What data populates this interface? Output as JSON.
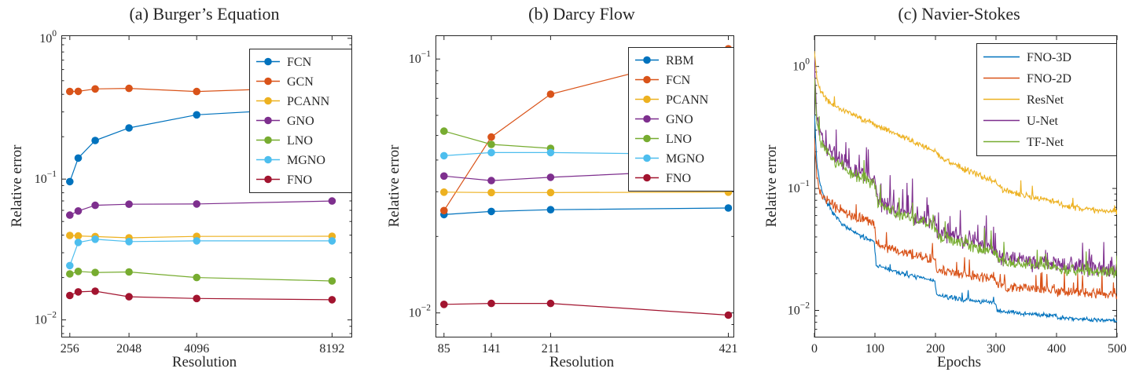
{
  "figure": {
    "background": "#ffffff",
    "axis_color": "#262626",
    "text_color": "#262626"
  },
  "colors": {
    "blue": "#0072BD",
    "orange": "#D95319",
    "yellow": "#EDB120",
    "purple": "#7E2F8E",
    "green": "#77AC30",
    "cyan": "#4DBEEE",
    "darkred": "#A2142F"
  },
  "chart_data": [
    {
      "type": "line",
      "title": "(a) Burger’s Equation",
      "xlabel": "Resolution",
      "ylabel": "Relative error",
      "x_scale": "linear",
      "y_scale": "log",
      "xlim": [
        0,
        8800
      ],
      "ylim": [
        0.0075,
        1.05
      ],
      "x_ticks": [
        256,
        2048,
        4096,
        8192
      ],
      "y_ticks": [
        0.01,
        0.1,
        1
      ],
      "grid": false,
      "markers": true,
      "legend_position": "northeast-inside",
      "x": [
        256,
        512,
        1024,
        2048,
        4096,
        8192
      ],
      "series": [
        {
          "name": "FCN",
          "color": "blue",
          "values": [
            0.096,
            0.141,
            0.188,
            0.231,
            0.286,
            0.324
          ]
        },
        {
          "name": "GCN",
          "color": "orange",
          "values": [
            0.419,
            0.42,
            0.437,
            0.441,
            0.419,
            0.451
          ]
        },
        {
          "name": "PCANN",
          "color": "yellow",
          "values": [
            0.0398,
            0.0395,
            0.0391,
            0.0383,
            0.0392,
            0.0393
          ]
        },
        {
          "name": "GNO",
          "color": "purple",
          "values": [
            0.0555,
            0.0594,
            0.0651,
            0.0663,
            0.0666,
            0.0699
          ]
        },
        {
          "name": "LNO",
          "color": "green",
          "values": [
            0.0212,
            0.0221,
            0.0217,
            0.0219,
            0.02,
            0.0189
          ]
        },
        {
          "name": "MGNO",
          "color": "cyan",
          "values": [
            0.0243,
            0.0355,
            0.0374,
            0.036,
            0.0364,
            0.0364
          ]
        },
        {
          "name": "FNO",
          "color": "darkred",
          "values": [
            0.0149,
            0.0158,
            0.016,
            0.0146,
            0.0142,
            0.0139
          ]
        }
      ]
    },
    {
      "type": "line",
      "title": "(b) Darcy Flow",
      "xlabel": "Resolution",
      "ylabel": "Relative error",
      "x_scale": "linear",
      "y_scale": "log",
      "xlim": [
        75,
        428
      ],
      "ylim": [
        0.008,
        0.124
      ],
      "x_ticks": [
        85,
        141,
        211,
        421
      ],
      "y_ticks": [
        0.01,
        0.1
      ],
      "grid": false,
      "markers": true,
      "legend_position": "northeast-inside",
      "x": [
        85,
        141,
        211,
        421
      ],
      "series": [
        {
          "name": "RBM",
          "color": "blue",
          "values": [
            0.0244,
            0.0251,
            0.0255,
            0.0259
          ]
        },
        {
          "name": "FCN",
          "color": "orange",
          "values": [
            0.0253,
            0.0493,
            0.0727,
            0.1097
          ]
        },
        {
          "name": "PCANN",
          "color": "yellow",
          "values": [
            0.0299,
            0.0298,
            0.0298,
            0.0299
          ]
        },
        {
          "name": "GNO",
          "color": "purple",
          "values": [
            0.0346,
            0.0332,
            0.0342,
            0.0369
          ]
        },
        {
          "name": "LNO",
          "color": "green",
          "values": [
            0.052,
            0.0461,
            0.0445,
            null
          ]
        },
        {
          "name": "MGNO",
          "color": "cyan",
          "values": [
            0.0416,
            0.0428,
            0.0428,
            0.042
          ]
        },
        {
          "name": "FNO",
          "color": "darkred",
          "values": [
            0.0108,
            0.0109,
            0.0109,
            0.0098
          ]
        }
      ]
    },
    {
      "type": "line",
      "title": "(c) Navier-Stokes",
      "xlabel": "Epochs",
      "ylabel": "Relative error",
      "x_scale": "linear",
      "y_scale": "log",
      "xlim": [
        0,
        500
      ],
      "ylim": [
        0.006,
        1.8
      ],
      "x_ticks": [
        0,
        100,
        200,
        300,
        400,
        500
      ],
      "y_ticks": [
        0.01,
        0.1,
        1
      ],
      "grid": false,
      "markers": false,
      "legend_position": "northeast-inside",
      "series": [
        {
          "name": "FNO-3D",
          "color": "blue",
          "seed": 7,
          "noise": 0.022,
          "spike_p": 0.02,
          "spike_a": 0.1,
          "keypoints": [
            [
              0,
              0.42
            ],
            [
              4,
              0.16
            ],
            [
              10,
              0.105
            ],
            [
              20,
              0.075
            ],
            [
              35,
              0.058
            ],
            [
              55,
              0.047
            ],
            [
              75,
              0.041
            ],
            [
              99,
              0.037
            ],
            [
              102,
              0.0235
            ],
            [
              130,
              0.021
            ],
            [
              165,
              0.019
            ],
            [
              199,
              0.0175
            ],
            [
              202,
              0.0133
            ],
            [
              250,
              0.0122
            ],
            [
              299,
              0.0115
            ],
            [
              302,
              0.0099
            ],
            [
              350,
              0.0094
            ],
            [
              399,
              0.0091
            ],
            [
              402,
              0.0087
            ],
            [
              450,
              0.0085
            ],
            [
              500,
              0.0082
            ]
          ]
        },
        {
          "name": "FNO-2D",
          "color": "orange",
          "seed": 13,
          "noise": 0.05,
          "spike_p": 0.05,
          "spike_a": 0.18,
          "keypoints": [
            [
              0,
              0.26
            ],
            [
              4,
              0.125
            ],
            [
              10,
              0.095
            ],
            [
              20,
              0.08
            ],
            [
              35,
              0.07
            ],
            [
              55,
              0.062
            ],
            [
              75,
              0.057
            ],
            [
              99,
              0.053
            ],
            [
              102,
              0.0355
            ],
            [
              130,
              0.0315
            ],
            [
              165,
              0.0285
            ],
            [
              199,
              0.0265
            ],
            [
              202,
              0.0213
            ],
            [
              250,
              0.0194
            ],
            [
              299,
              0.0183
            ],
            [
              302,
              0.0159
            ],
            [
              350,
              0.0151
            ],
            [
              399,
              0.0147
            ],
            [
              402,
              0.0142
            ],
            [
              450,
              0.0139
            ],
            [
              500,
              0.0135
            ]
          ]
        },
        {
          "name": "ResNet",
          "color": "yellow",
          "seed": 21,
          "noise": 0.03,
          "spike_p": 0.03,
          "spike_a": 0.12,
          "keypoints": [
            [
              0,
              1.35
            ],
            [
              4,
              0.8
            ],
            [
              10,
              0.63
            ],
            [
              20,
              0.54
            ],
            [
              35,
              0.47
            ],
            [
              55,
              0.42
            ],
            [
              75,
              0.38
            ],
            [
              100,
              0.335
            ],
            [
              130,
              0.285
            ],
            [
              165,
              0.24
            ],
            [
              200,
              0.2
            ],
            [
              215,
              0.172
            ],
            [
              250,
              0.142
            ],
            [
              299,
              0.113
            ],
            [
              310,
              0.098
            ],
            [
              350,
              0.087
            ],
            [
              399,
              0.077
            ],
            [
              415,
              0.071
            ],
            [
              460,
              0.067
            ],
            [
              500,
              0.064
            ]
          ]
        },
        {
          "name": "U-Net",
          "color": "purple",
          "seed": 5,
          "noise": 0.095,
          "spike_p": 0.08,
          "spike_a": 0.26,
          "keypoints": [
            [
              0,
              1.05
            ],
            [
              4,
              0.38
            ],
            [
              10,
              0.28
            ],
            [
              20,
              0.225
            ],
            [
              35,
              0.185
            ],
            [
              55,
              0.155
            ],
            [
              75,
              0.135
            ],
            [
              99,
              0.12
            ],
            [
              105,
              0.082
            ],
            [
              130,
              0.068
            ],
            [
              165,
              0.059
            ],
            [
              199,
              0.053
            ],
            [
              205,
              0.0445
            ],
            [
              250,
              0.0385
            ],
            [
              299,
              0.0325
            ],
            [
              305,
              0.0275
            ],
            [
              350,
              0.0252
            ],
            [
              399,
              0.0242
            ],
            [
              405,
              0.0231
            ],
            [
              450,
              0.0226
            ],
            [
              500,
              0.0222
            ]
          ]
        },
        {
          "name": "TF-Net",
          "color": "green",
          "seed": 9,
          "noise": 0.065,
          "spike_p": 0.06,
          "spike_a": 0.18,
          "keypoints": [
            [
              0,
              0.8
            ],
            [
              4,
              0.33
            ],
            [
              10,
              0.245
            ],
            [
              20,
              0.2
            ],
            [
              35,
              0.165
            ],
            [
              55,
              0.14
            ],
            [
              75,
              0.123
            ],
            [
              99,
              0.11
            ],
            [
              105,
              0.077
            ],
            [
              130,
              0.063
            ],
            [
              165,
              0.0555
            ],
            [
              199,
              0.05
            ],
            [
              205,
              0.0415
            ],
            [
              250,
              0.0355
            ],
            [
              299,
              0.0295
            ],
            [
              305,
              0.026
            ],
            [
              350,
              0.0238
            ],
            [
              399,
              0.0228
            ],
            [
              405,
              0.0217
            ],
            [
              450,
              0.0211
            ],
            [
              500,
              0.0206
            ]
          ]
        }
      ]
    }
  ]
}
